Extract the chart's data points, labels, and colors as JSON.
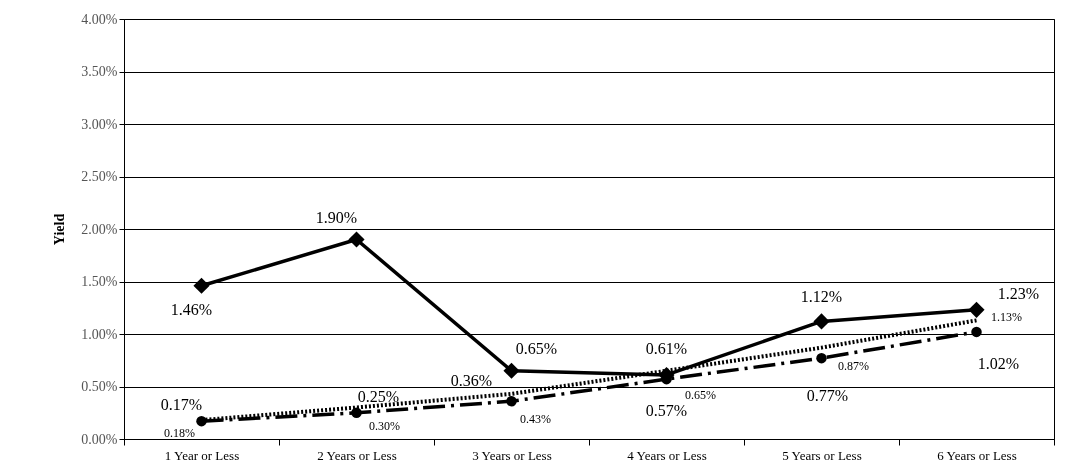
{
  "chart_data": {
    "type": "line",
    "ylabel": "Yield",
    "categories": [
      "1 Year or Less",
      "2 Years or Less",
      "3 Years or Less",
      "4 Years or Less",
      "5 Years or Less",
      "6 Years or Less"
    ],
    "ylim": [
      0,
      4
    ],
    "yticks": [
      {
        "value": 0,
        "label": "0.00%"
      },
      {
        "value": 0.5,
        "label": "0.50%"
      },
      {
        "value": 1,
        "label": "1.00%"
      },
      {
        "value": 1.5,
        "label": "1.50%"
      },
      {
        "value": 2,
        "label": "2.00%"
      },
      {
        "value": 2.5,
        "label": "2.50%"
      },
      {
        "value": 3,
        "label": "3.00%"
      },
      {
        "value": 3.5,
        "label": "3.50%"
      },
      {
        "value": 4,
        "label": "4.00%"
      }
    ],
    "grid": "y",
    "series": [
      {
        "color": "#000000",
        "marker": "diamond",
        "line_style": "solid",
        "values": [
          1.46,
          1.9,
          0.65,
          0.61,
          1.12,
          1.23
        ],
        "value_labels": [
          "1.46%",
          "1.90%",
          "0.65%",
          "0.61%",
          "1.12%",
          "1.23%"
        ]
      },
      {
        "color": "#000000",
        "marker": "circle",
        "line_style": "dashed",
        "values": [
          0.17,
          0.25,
          0.36,
          0.57,
          0.77,
          1.02
        ],
        "value_labels": [
          "0.17%",
          "0.25%",
          "0.36%",
          "0.57%",
          "0.77%",
          "1.02%"
        ]
      },
      {
        "color": "#000000",
        "marker": "none",
        "line_style": "dotted",
        "values": [
          0.18,
          0.3,
          0.43,
          0.65,
          0.87,
          1.13
        ],
        "value_labels": [
          "0.18%",
          "0.30%",
          "0.43%",
          "0.65%",
          "0.87%",
          "1.13%"
        ]
      }
    ]
  }
}
